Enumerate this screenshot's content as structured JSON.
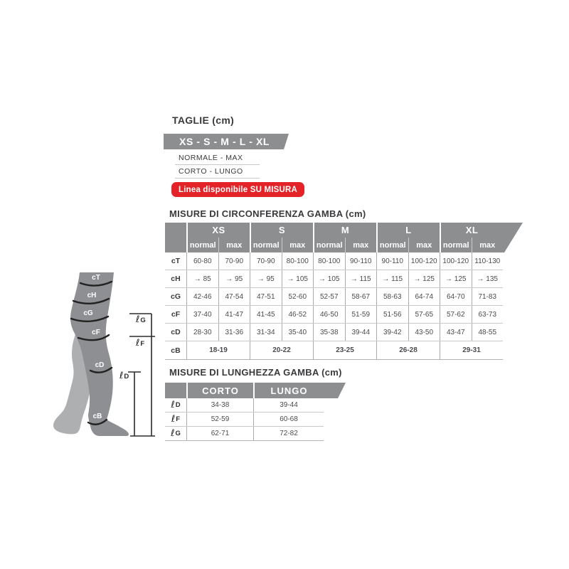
{
  "taglie": {
    "title": "TAGLIE (cm)",
    "sizes_banner": "XS - S - M - L - XL",
    "option_rows": [
      "NORMALE - MAX",
      "CORTO - LUNGO"
    ],
    "badge": "Linea disponibile SU MISURA"
  },
  "colors": {
    "banner_gray": "#8d8e90",
    "badge_red": "#e42328",
    "heading_text": "#3a3a3c",
    "cell_text": "#4b4b4f",
    "leg_front": "#8e8f92",
    "leg_back": "#aeafb1",
    "arc_black": "#222222"
  },
  "circumference_table": {
    "title": "MISURE DI CIRCONFERENZA GAMBA (cm)",
    "groups": [
      {
        "name": "XS",
        "sub": [
          "normal",
          "max"
        ]
      },
      {
        "name": "S",
        "sub": [
          "normal",
          "max"
        ]
      },
      {
        "name": "M",
        "sub": [
          "normal",
          "max"
        ]
      },
      {
        "name": "L",
        "sub": [
          "normal",
          "max"
        ]
      },
      {
        "name": "XL",
        "sub": [
          "normal",
          "max"
        ]
      }
    ],
    "rows": [
      {
        "label": "cT",
        "merged": false,
        "values": [
          "60-80",
          "70-90",
          "70-90",
          "80-100",
          "80-100",
          "90-110",
          "90-110",
          "100-120",
          "100-120",
          "110-130"
        ]
      },
      {
        "label": "cH",
        "merged": false,
        "values": [
          "→ 85",
          "→ 95",
          "→ 95",
          "→ 105",
          "→ 105",
          "→ 115",
          "→ 115",
          "→ 125",
          "→ 125",
          "→ 135"
        ]
      },
      {
        "label": "cG",
        "merged": false,
        "values": [
          "42-46",
          "47-54",
          "47-51",
          "52-60",
          "52-57",
          "58-67",
          "58-63",
          "64-74",
          "64-70",
          "71-83"
        ]
      },
      {
        "label": "cF",
        "merged": false,
        "values": [
          "37-40",
          "41-47",
          "41-45",
          "46-52",
          "46-50",
          "51-59",
          "51-56",
          "57-65",
          "57-62",
          "63-73"
        ]
      },
      {
        "label": "cD",
        "merged": false,
        "values": [
          "28-30",
          "31-36",
          "31-34",
          "35-40",
          "35-38",
          "39-44",
          "39-42",
          "43-50",
          "43-47",
          "48-55"
        ]
      },
      {
        "label": "cB",
        "merged": true,
        "values": [
          "18-19",
          "20-22",
          "23-25",
          "26-28",
          "29-31"
        ]
      }
    ]
  },
  "length_table": {
    "title": "MISURE DI LUNGHEZZA GAMBA (cm)",
    "columns": [
      "CORTO",
      "LUNGO"
    ],
    "rows": [
      {
        "prefix": "ℓ",
        "letter": "D",
        "corto": "34-38",
        "lungo": "39-44"
      },
      {
        "prefix": "ℓ",
        "letter": "F",
        "corto": "52-59",
        "lungo": "60-68"
      },
      {
        "prefix": "ℓ",
        "letter": "G",
        "corto": "62-71",
        "lungo": "72-82"
      }
    ]
  },
  "leg_diagram": {
    "circumference_labels": {
      "cT": "cT",
      "cH": "cH",
      "cG": "cG",
      "cF": "cF",
      "cD": "cD",
      "cB": "cB"
    },
    "length_marks": [
      {
        "prefix": "ℓ",
        "letter": "G"
      },
      {
        "prefix": "ℓ",
        "letter": "F"
      },
      {
        "prefix": "ℓ",
        "letter": "D"
      }
    ]
  }
}
